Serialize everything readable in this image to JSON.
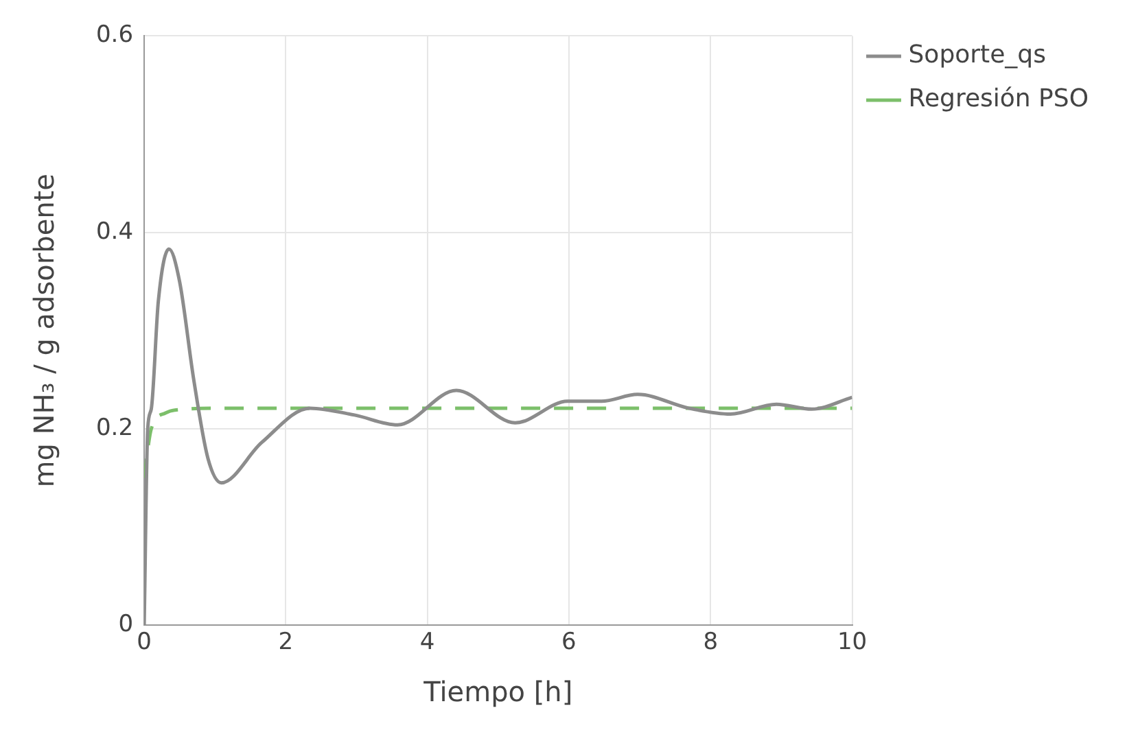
{
  "chart_data": {
    "type": "line",
    "xlabel": "Tiempo [h]",
    "ylabel": "mg NH₃ / g adsorbente",
    "xlim": [
      0,
      10
    ],
    "ylim": [
      0,
      0.6
    ],
    "xticks": [
      0,
      2,
      4,
      6,
      8,
      10
    ],
    "yticks": [
      0,
      0.2,
      0.4,
      0.6
    ],
    "grid": true,
    "legend": "top right",
    "marker": "none",
    "series": [
      {
        "name": "Soporte_qs",
        "color": "#8c8c8c",
        "line_style": "solid",
        "x": [
          0,
          0.05,
          0.1,
          0.2,
          0.35,
          0.5,
          0.7,
          0.9,
          1.09,
          1.66,
          2.34,
          2.97,
          3.58,
          4.41,
          5.24,
          5.98,
          6.46,
          6.97,
          7.69,
          8.28,
          8.93,
          9.43,
          10
        ],
        "values": [
          0,
          0.2,
          0.22,
          0.33,
          0.383,
          0.35,
          0.25,
          0.17,
          0.145,
          0.186,
          0.221,
          0.214,
          0.204,
          0.239,
          0.206,
          0.228,
          0.228,
          0.235,
          0.221,
          0.215,
          0.225,
          0.22,
          0.232
        ]
      },
      {
        "name": "Regresión PSO",
        "color": "#7cbf6a",
        "line_style": "dashed",
        "x": [
          0,
          0.1,
          0.3,
          0.6,
          1,
          10
        ],
        "values": [
          0.15,
          0.2,
          0.216,
          0.22,
          0.221,
          0.221
        ]
      }
    ]
  }
}
